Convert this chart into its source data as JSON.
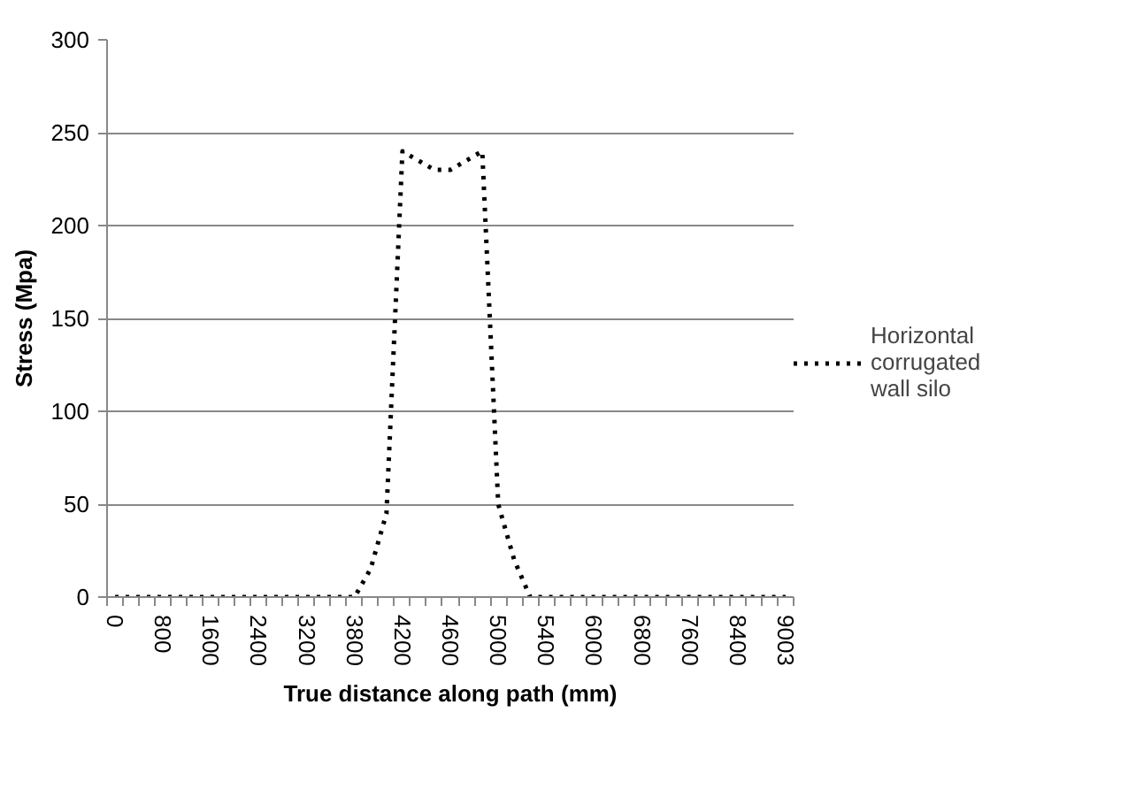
{
  "chart_data": {
    "type": "line",
    "xlabel": "True distance along path (mm)",
    "ylabel": "Stress (Mpa)",
    "categories": [
      "0",
      null,
      null,
      "800",
      null,
      null,
      "1600",
      null,
      null,
      "2400",
      null,
      null,
      "3200",
      null,
      null,
      "3800",
      null,
      null,
      "4200",
      null,
      null,
      "4600",
      null,
      null,
      "5000",
      null,
      null,
      "5400",
      null,
      null,
      "6000",
      null,
      null,
      "6800",
      null,
      null,
      "7600",
      null,
      null,
      "8400",
      null,
      null,
      "9003"
    ],
    "series": [
      {
        "name": "Horizontal corrugated wall silo",
        "color": "#000000",
        "values": [
          0,
          0,
          0,
          0,
          0,
          0,
          0,
          0,
          0,
          0,
          0,
          0,
          0,
          0,
          0,
          0,
          15,
          45,
          240,
          235,
          230,
          230,
          235,
          240,
          50,
          20,
          0,
          0,
          0,
          0,
          0,
          0,
          0,
          0,
          0,
          0,
          0,
          0,
          0,
          0,
          0,
          0,
          0
        ]
      }
    ],
    "ylim": [
      0,
      300
    ],
    "yticks": [
      0,
      50,
      100,
      150,
      200,
      250,
      300
    ],
    "grid": "y",
    "legend": "right",
    "marker": "none",
    "line_style": "dotted"
  }
}
